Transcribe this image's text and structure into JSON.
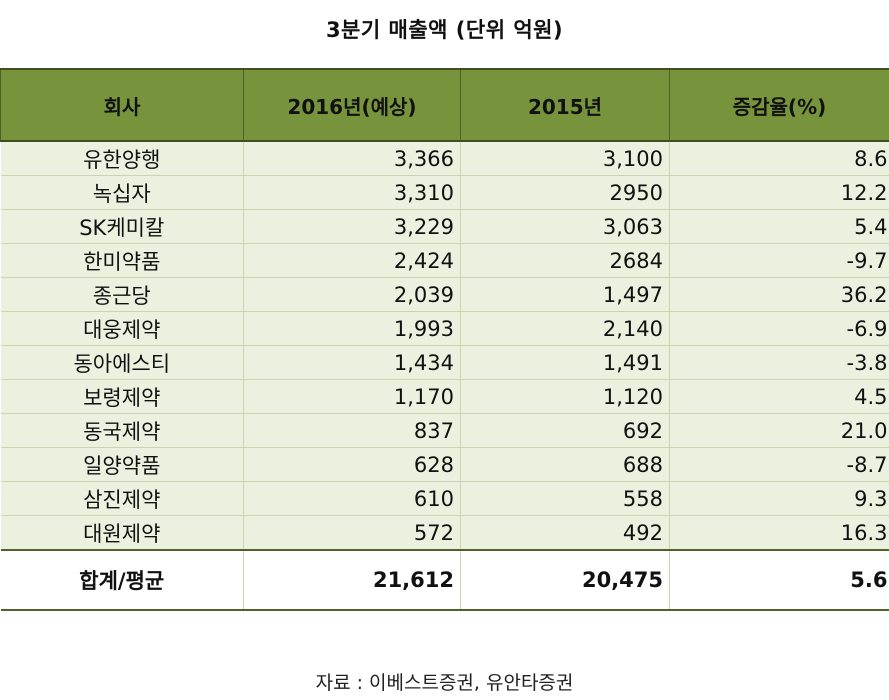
{
  "chart_data": {
    "type": "table",
    "title": "3분기 매출액  (단위 억원)",
    "columns": [
      "회사",
      "2016년(예상)",
      "2015년",
      "증감율(%)"
    ],
    "rows": [
      [
        "유한양행",
        "3,366",
        "3,100",
        "8.6"
      ],
      [
        "녹십자",
        "3,310",
        "2950",
        "12.2"
      ],
      [
        "SK케미칼",
        "3,229",
        "3,063",
        "5.4"
      ],
      [
        "한미약품",
        "2,424",
        "2684",
        "-9.7"
      ],
      [
        "종근당",
        "2,039",
        "1,497",
        "36.2"
      ],
      [
        "대웅제약",
        "1,993",
        "2,140",
        "-6.9"
      ],
      [
        "동아에스티",
        "1,434",
        "1,491",
        "-3.8"
      ],
      [
        "보령제약",
        "1,170",
        "1,120",
        "4.5"
      ],
      [
        "동국제약",
        "837",
        "692",
        "21.0"
      ],
      [
        "일양약품",
        "628",
        "688",
        "-8.7"
      ],
      [
        "삼진제약",
        "610",
        "558",
        "9.3"
      ],
      [
        "대원제약",
        "572",
        "492",
        "16.3"
      ]
    ],
    "total": [
      "합계/평균",
      "21,612",
      "20,475",
      "5.6"
    ],
    "source": "자료 : 이베스트증권, 유안타증권"
  },
  "colors": {
    "header_bg": "#77933c",
    "row_bg": "#ebf1de"
  }
}
